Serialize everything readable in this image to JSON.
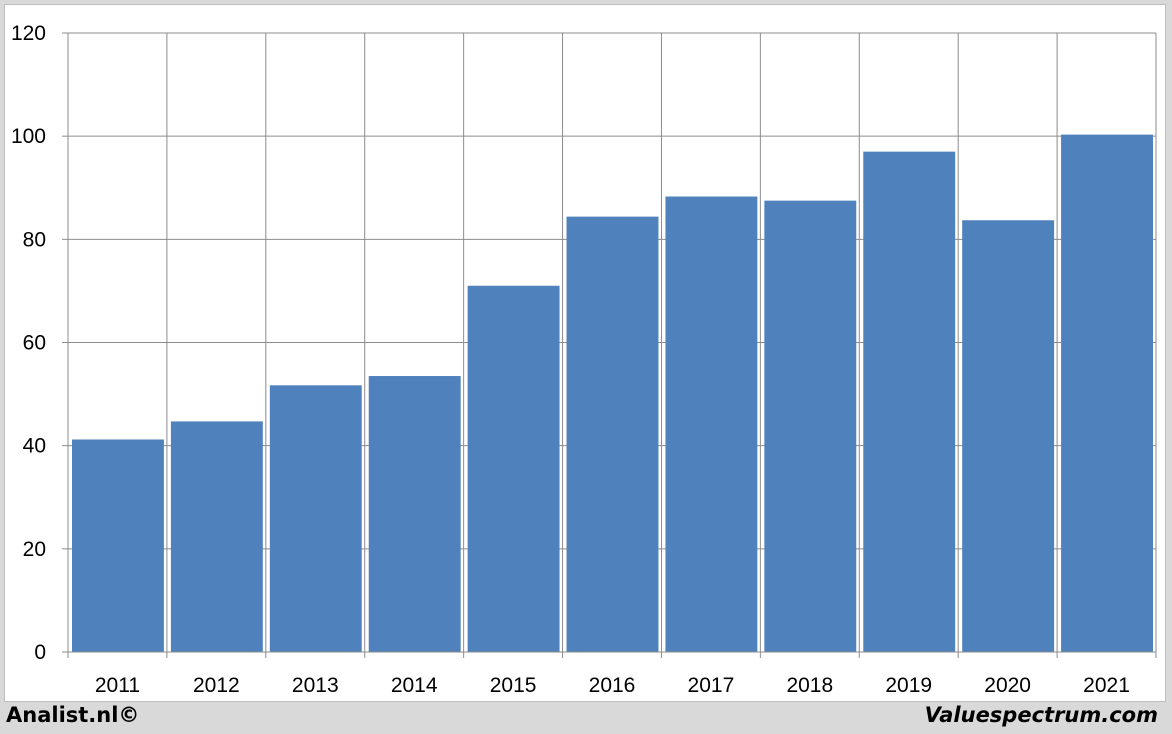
{
  "chart_data": {
    "type": "bar",
    "categories": [
      "2011",
      "2012",
      "2013",
      "2014",
      "2015",
      "2016",
      "2017",
      "2018",
      "2019",
      "2020",
      "2021"
    ],
    "values": [
      41.2,
      44.7,
      51.7,
      53.5,
      71.0,
      84.4,
      88.3,
      87.5,
      97.0,
      83.7,
      100.3
    ],
    "title": "",
    "xlabel": "",
    "ylabel": "",
    "ylim": [
      0,
      120
    ],
    "yticks": [
      "0",
      "20",
      "40",
      "60",
      "80",
      "100",
      "120"
    ],
    "grid": true,
    "bar_color": "#4f81bd"
  },
  "footer": {
    "left": "Analist.nl©",
    "right": "Valuespectrum.com"
  }
}
